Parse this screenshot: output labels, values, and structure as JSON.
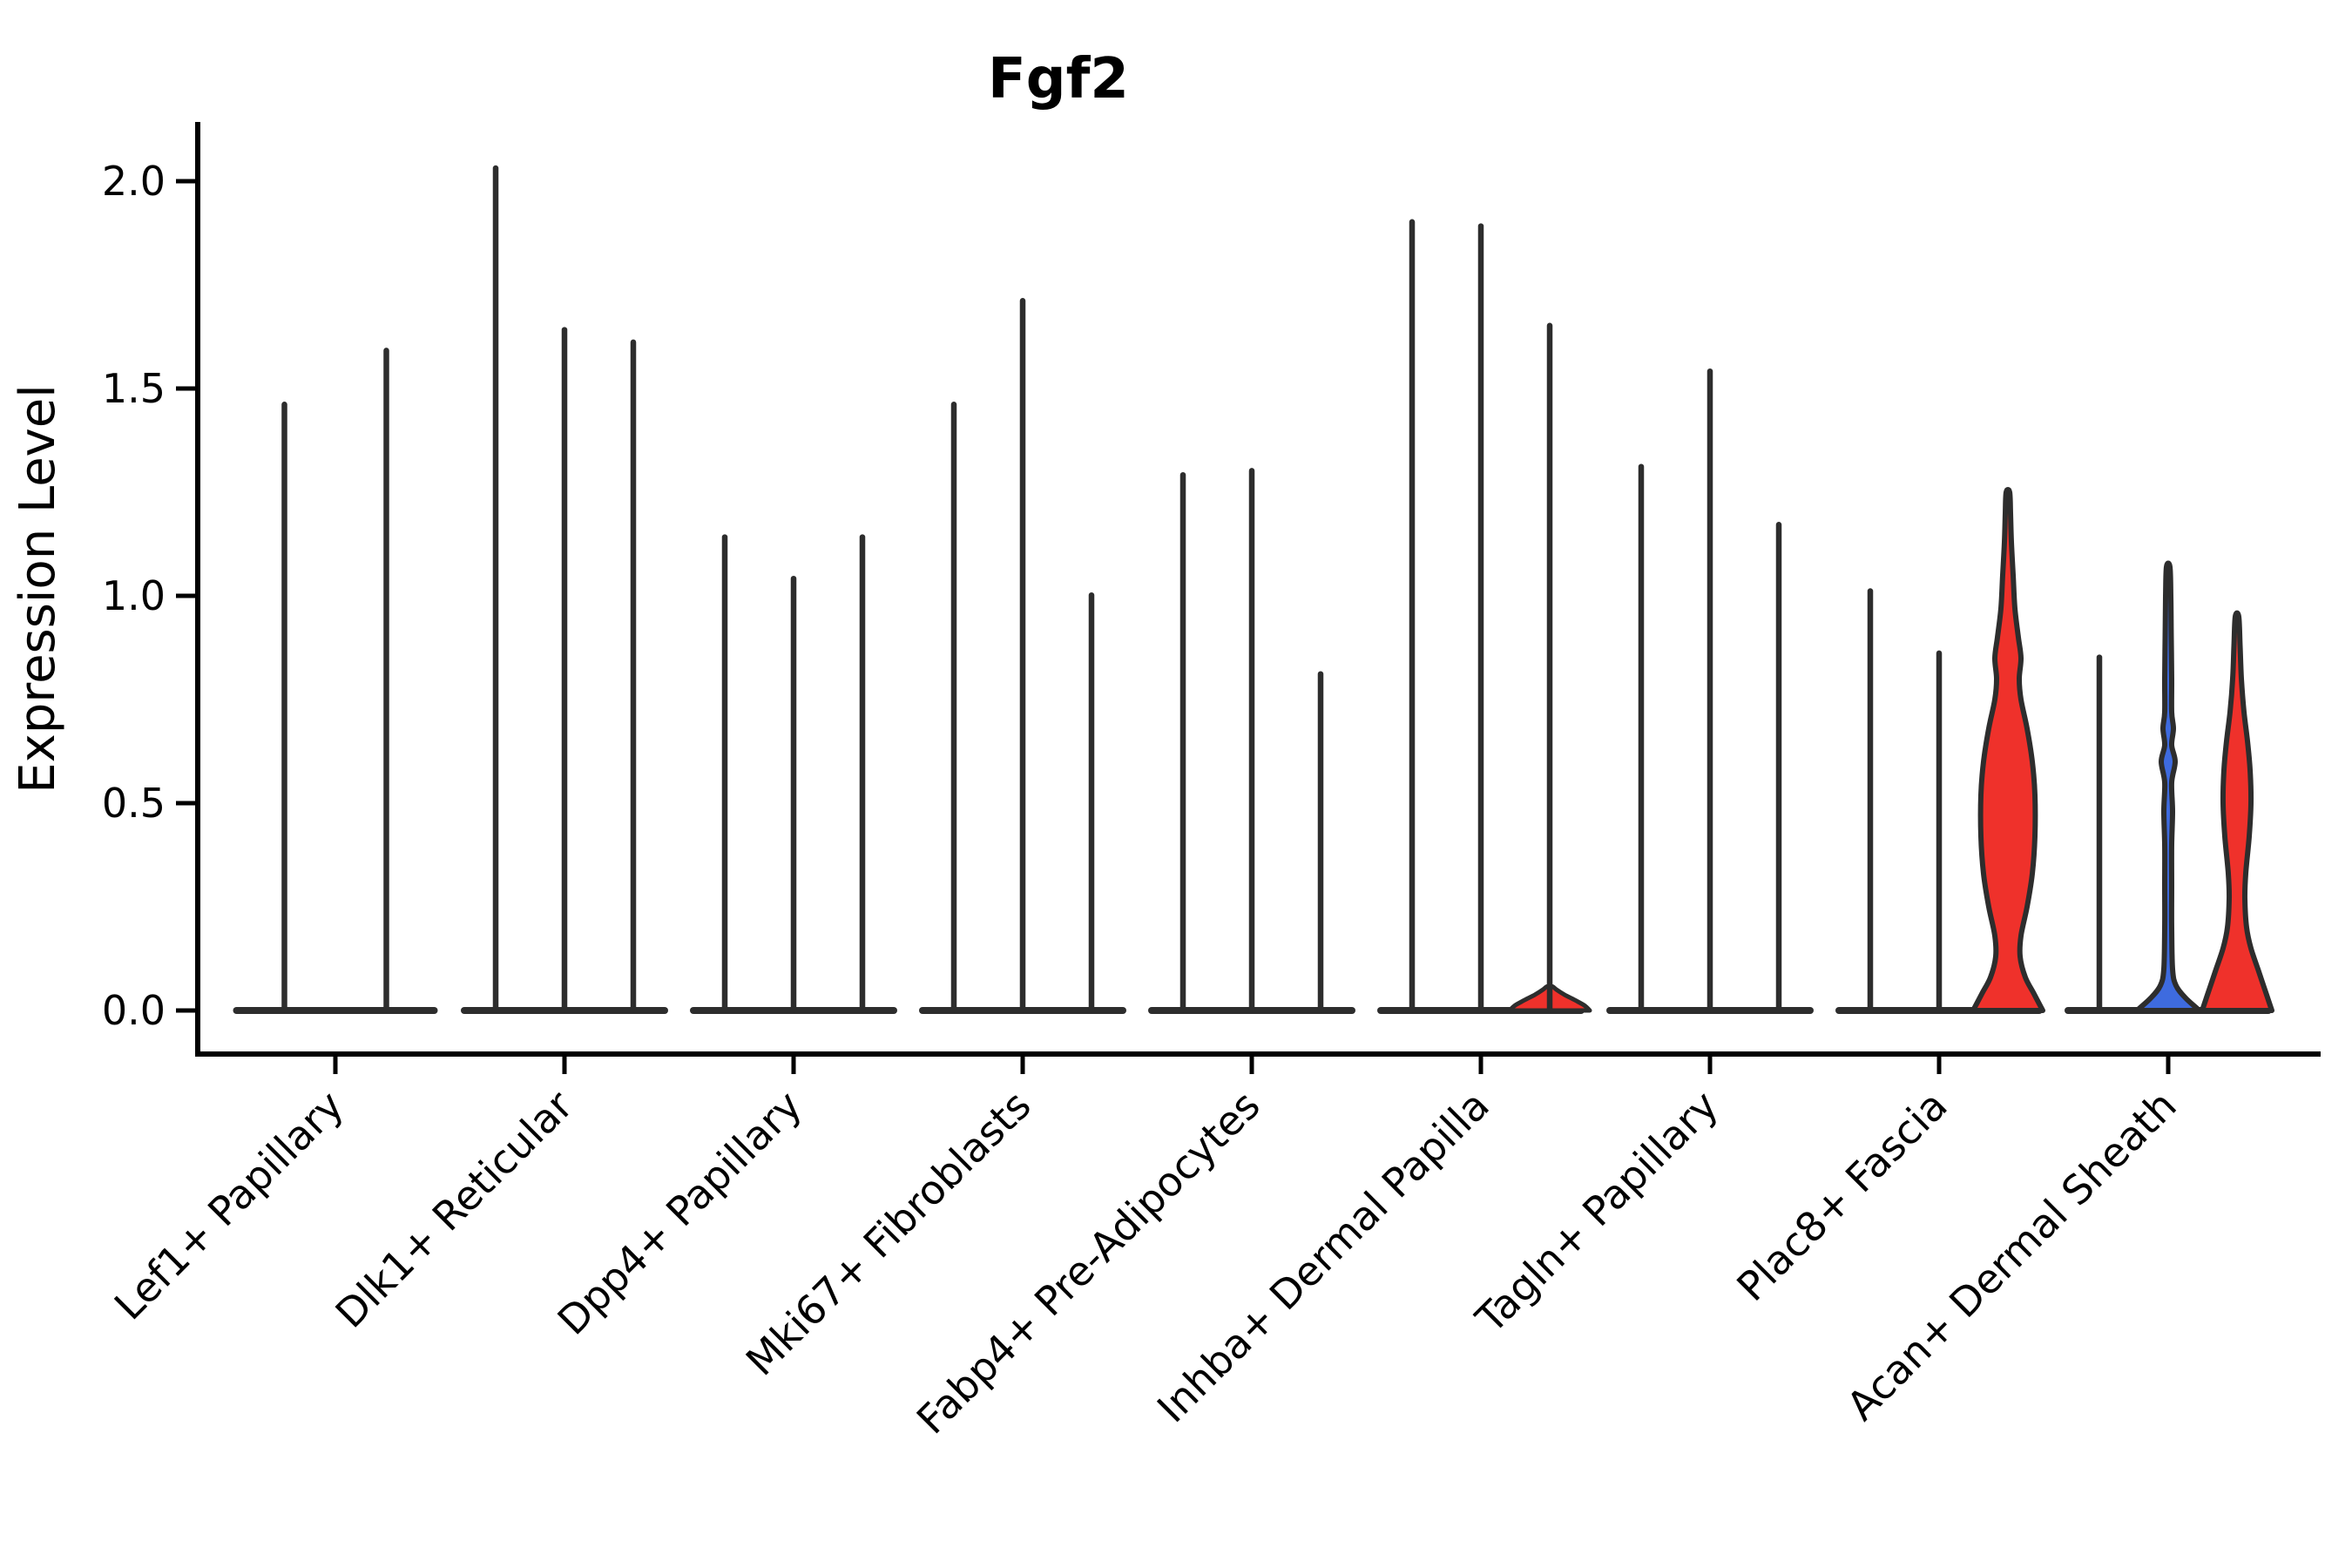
{
  "title": "Fgf2",
  "y_axis_label": "Expression Level",
  "colors": {
    "red": "#EF312B",
    "blue": "#3E6BDF",
    "ink": "#2D2D2D",
    "axis": "#000000",
    "background": "#FFFFFF"
  },
  "chart_data": {
    "type": "violin",
    "title": "Fgf2",
    "xlabel": "",
    "ylabel": "Expression Level",
    "ylim": [
      0,
      2.15
    ],
    "yticks": [
      "0.0",
      "0.5",
      "1.0",
      "1.5",
      "2.0"
    ],
    "grid": false,
    "legend": "none",
    "categories": [
      "Lef1+ Papillary",
      "Dlk1+ Reticular",
      "Dpp4+ Papillary",
      "Mki67+ Fibroblasts",
      "Fabp4+ Pre-Adipocytes",
      "Inhba+ Dermal Papilla",
      "Tagln+ Papillary",
      "Plac8+ Fascia",
      "Acan+ Dermal Sheath"
    ],
    "groups": [
      {
        "category": "Lef1+ Papillary",
        "violins": [
          {
            "max": 1.47,
            "style": "spike",
            "fill": "none"
          },
          {
            "max": 1.6,
            "style": "spike",
            "fill": "none"
          }
        ]
      },
      {
        "category": "Dlk1+ Reticular",
        "violins": [
          {
            "max": 2.04,
            "style": "spike",
            "fill": "none"
          },
          {
            "max": 1.65,
            "style": "spike",
            "fill": "none"
          },
          {
            "max": 1.62,
            "style": "spike",
            "fill": "none"
          }
        ]
      },
      {
        "category": "Dpp4+ Papillary",
        "violins": [
          {
            "max": 1.15,
            "style": "spike",
            "fill": "none"
          },
          {
            "max": 1.05,
            "style": "spike",
            "fill": "none"
          },
          {
            "max": 1.15,
            "style": "spike",
            "fill": "none"
          }
        ]
      },
      {
        "category": "Mki67+ Fibroblasts",
        "violins": [
          {
            "max": 1.47,
            "style": "spike",
            "fill": "none"
          },
          {
            "max": 1.72,
            "style": "spike",
            "fill": "none"
          },
          {
            "max": 1.01,
            "style": "spike",
            "fill": "none"
          }
        ]
      },
      {
        "category": "Fabp4+ Pre-Adipocytes",
        "violins": [
          {
            "max": 1.3,
            "style": "spike",
            "fill": "none"
          },
          {
            "max": 1.31,
            "style": "spike",
            "fill": "none"
          },
          {
            "max": 0.82,
            "style": "spike",
            "fill": "none"
          }
        ]
      },
      {
        "category": "Inhba+ Dermal Papilla",
        "violins": [
          {
            "max": 1.91,
            "style": "spike",
            "fill": "none"
          },
          {
            "max": 1.9,
            "style": "spike",
            "fill": "none"
          },
          {
            "max": 1.66,
            "style": "spike-with-base-bump",
            "fill": "red",
            "bump_profile": [
              [
                0,
                46
              ],
              [
                0.012,
                40
              ],
              [
                0.025,
                29
              ],
              [
                0.038,
                17
              ],
              [
                0.05,
                8
              ],
              [
                0.058,
                3
              ]
            ]
          }
        ]
      },
      {
        "category": "Tagln+ Papillary",
        "violins": [
          {
            "max": 1.32,
            "style": "spike",
            "fill": "none"
          },
          {
            "max": 1.55,
            "style": "spike",
            "fill": "none"
          },
          {
            "max": 1.18,
            "style": "spike",
            "fill": "none"
          }
        ]
      },
      {
        "category": "Plac8+ Fascia",
        "violins": [
          {
            "max": 1.02,
            "style": "spike",
            "fill": "none"
          },
          {
            "max": 0.87,
            "style": "spike",
            "fill": "none"
          },
          {
            "max": 1.25,
            "style": "body",
            "fill": "red",
            "profile": [
              [
                0,
                40
              ],
              [
                0.04,
                30
              ],
              [
                0.08,
                20
              ],
              [
                0.13,
                14
              ],
              [
                0.18,
                15
              ],
              [
                0.25,
                22
              ],
              [
                0.33,
                28
              ],
              [
                0.42,
                31
              ],
              [
                0.52,
                31
              ],
              [
                0.6,
                28
              ],
              [
                0.68,
                22
              ],
              [
                0.75,
                15
              ],
              [
                0.8,
                13
              ],
              [
                0.85,
                15
              ],
              [
                0.9,
                12
              ],
              [
                0.97,
                8
              ],
              [
                1.05,
                6
              ],
              [
                1.13,
                4
              ],
              [
                1.2,
                3
              ],
              [
                1.25,
                2
              ]
            ]
          }
        ]
      },
      {
        "category": "Acan+ Dermal Sheath",
        "violins": [
          {
            "max": 0.86,
            "style": "spike",
            "fill": "none"
          },
          {
            "max": 1.07,
            "style": "body",
            "fill": "blue",
            "profile": [
              [
                0,
                36
              ],
              [
                0.03,
                20
              ],
              [
                0.06,
                9
              ],
              [
                0.1,
                5
              ],
              [
                0.2,
                4
              ],
              [
                0.3,
                4
              ],
              [
                0.4,
                4
              ],
              [
                0.48,
                5
              ],
              [
                0.55,
                4
              ],
              [
                0.6,
                8
              ],
              [
                0.64,
                4
              ],
              [
                0.68,
                6
              ],
              [
                0.72,
                4
              ],
              [
                0.8,
                4
              ],
              [
                0.9,
                3.5
              ],
              [
                1.0,
                3
              ],
              [
                1.07,
                2
              ]
            ]
          },
          {
            "max": 0.95,
            "style": "body",
            "fill": "red",
            "profile": [
              [
                0,
                40
              ],
              [
                0.05,
                32
              ],
              [
                0.1,
                24
              ],
              [
                0.15,
                16
              ],
              [
                0.2,
                11
              ],
              [
                0.27,
                9
              ],
              [
                0.33,
                10
              ],
              [
                0.42,
                14
              ],
              [
                0.5,
                16
              ],
              [
                0.58,
                15
              ],
              [
                0.65,
                12
              ],
              [
                0.72,
                8
              ],
              [
                0.8,
                5
              ],
              [
                0.88,
                3.5
              ],
              [
                0.95,
                2
              ]
            ]
          }
        ]
      }
    ]
  }
}
